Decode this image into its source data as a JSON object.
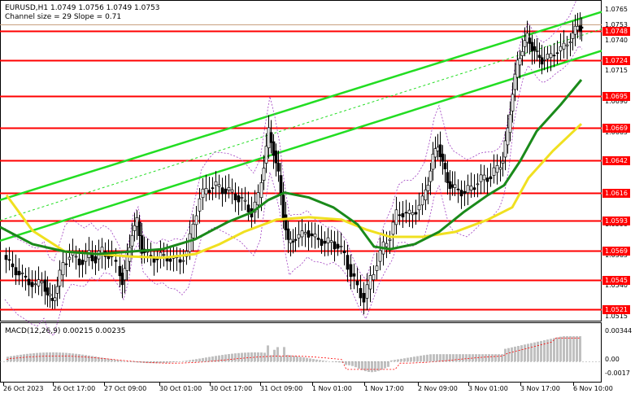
{
  "header": {
    "symbol_line": "EURUSD,H1  1.0749 1.0756 1.0749 1.0753",
    "channel_line": "Channel size = 29 Slope = 0.71"
  },
  "price_scale": [
    "1.0765",
    "1.0740",
    "1.0715",
    "1.0690",
    "1.0665",
    "1.0640",
    "1.0615",
    "1.0590",
    "1.0565",
    "1.0540",
    "1.0515"
  ],
  "levels": [
    "1.0753",
    "1.0748",
    "1.0724",
    "1.0695",
    "1.0669",
    "1.0642",
    "1.0616",
    "1.0593",
    "1.0569",
    "1.0545",
    "1.0521"
  ],
  "level_color": "#ff0000",
  "macd": {
    "label": "MACD(12,26,9) 0.00215 0.00235",
    "scale": [
      "0.00344",
      "0.00",
      "-0.0017"
    ]
  },
  "time_axis": [
    "26 Oct 2023",
    "26 Oct 17:00",
    "27 Oct 09:00",
    "30 Oct 01:00",
    "30 Oct 17:00",
    "31 Oct 09:00",
    "1 Nov 01:00",
    "1 Nov 17:00",
    "2 Nov 09:00",
    "3 Nov 01:00",
    "3 Nov 17:00",
    "6 Nov 10:00"
  ],
  "colors": {
    "channel": "#22dd22",
    "ma_green": "#1a8a1a",
    "ma_yellow": "#f0e020",
    "envelope": "#a040c0",
    "candles": "#000000",
    "histogram": "#c0c0c0",
    "signal": "#ff0000"
  }
}
